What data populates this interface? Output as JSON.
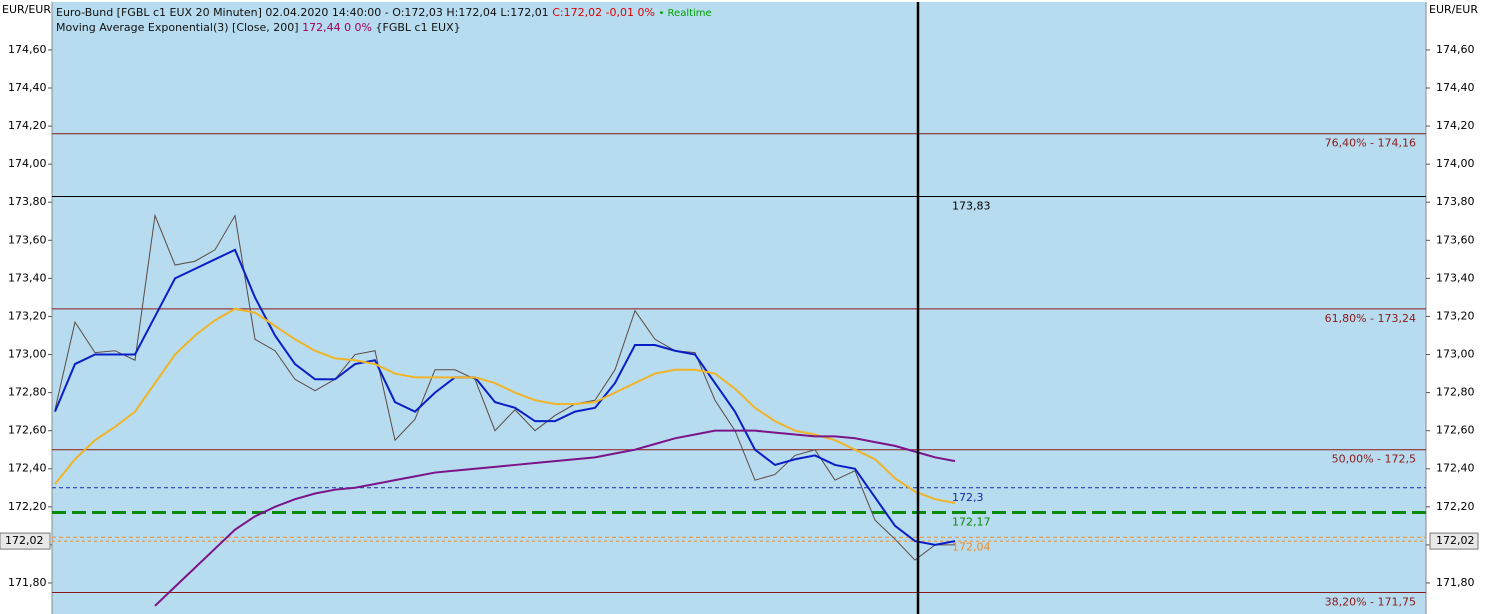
{
  "header": {
    "line1": "Euro-Bund [FGBL c1 EUX 20 Minuten] 02.04.2020 14:40:00 - O:172,03 H:172,04 L:172,01",
    "line1_close": "C:172,02 -0,01 0%",
    "line1_status": "• Realtime",
    "line2": "Moving Average Exponential(3) [Close, 200]",
    "line2_value": "172,44 0 0%",
    "line2_source": "{FGBL c1 EUX}"
  },
  "axis_unit_left": "EUR/EUR",
  "axis_unit_right": "EUR/EUR",
  "chart_data": {
    "type": "line",
    "x": [
      0,
      1,
      2,
      3,
      4,
      5,
      6,
      7,
      8,
      9,
      10,
      11,
      12,
      13,
      14,
      15,
      16,
      17,
      18,
      19,
      20,
      21,
      22,
      23,
      24,
      25,
      26,
      27,
      28,
      29,
      30,
      31,
      32,
      33,
      34,
      35,
      36,
      37,
      38,
      39,
      40,
      41,
      42,
      43,
      44,
      45
    ],
    "xlim": [
      -0.15,
      68.55
    ],
    "ylim": [
      171.637,
      174.836
    ],
    "yticks": [
      {
        "value": 171.8,
        "label": "171,80"
      },
      {
        "value": 172.0,
        "label": "172,00"
      },
      {
        "value": 172.2,
        "label": "172,20"
      },
      {
        "value": 172.4,
        "label": "172,40"
      },
      {
        "value": 172.6,
        "label": "172,60"
      },
      {
        "value": 172.8,
        "label": "172,80"
      },
      {
        "value": 173.0,
        "label": "173,00"
      },
      {
        "value": 173.2,
        "label": "173,20"
      },
      {
        "value": 173.4,
        "label": "173,40"
      },
      {
        "value": 173.6,
        "label": "173,60"
      },
      {
        "value": 173.8,
        "label": "173,80"
      },
      {
        "value": 174.0,
        "label": "174,00"
      },
      {
        "value": 174.2,
        "label": "174,20"
      },
      {
        "value": 174.4,
        "label": "174,40"
      },
      {
        "value": 174.6,
        "label": "174,60"
      }
    ],
    "series": [
      {
        "color": "#5a4a42",
        "values": [
          172.71,
          173.17,
          173.01,
          173.02,
          172.97,
          173.73,
          173.47,
          173.49,
          173.55,
          173.73,
          173.08,
          173.02,
          172.87,
          172.81,
          172.87,
          173.0,
          173.02,
          172.55,
          172.66,
          172.92,
          172.92,
          172.87,
          172.6,
          172.71,
          172.6,
          172.68,
          172.74,
          172.76,
          172.92,
          173.23,
          173.08,
          173.02,
          173.01,
          172.76,
          172.6,
          172.34,
          172.37,
          172.47,
          172.5,
          172.34,
          172.39,
          172.13,
          172.03,
          171.92,
          172.0,
          172.0
        ]
      },
      {
        "color": "#0a1ec8",
        "values": [
          172.7,
          172.95,
          173.0,
          173.0,
          173.0,
          173.2,
          173.4,
          173.45,
          173.5,
          173.55,
          173.3,
          173.1,
          172.95,
          172.87,
          172.87,
          172.95,
          172.97,
          172.75,
          172.7,
          172.8,
          172.88,
          172.88,
          172.75,
          172.72,
          172.65,
          172.65,
          172.7,
          172.72,
          172.85,
          173.05,
          173.05,
          173.02,
          173.0,
          172.85,
          172.7,
          172.5,
          172.42,
          172.45,
          172.47,
          172.42,
          172.4,
          172.25,
          172.1,
          172.02,
          172.0,
          172.02
        ]
      },
      {
        "color": "#f0b428",
        "values": [
          172.32,
          172.45,
          172.55,
          172.62,
          172.7,
          172.85,
          173.0,
          173.1,
          173.18,
          173.24,
          173.22,
          173.15,
          173.08,
          173.02,
          172.98,
          172.97,
          172.95,
          172.9,
          172.88,
          172.88,
          172.88,
          172.88,
          172.85,
          172.8,
          172.76,
          172.74,
          172.74,
          172.75,
          172.8,
          172.85,
          172.9,
          172.92,
          172.92,
          172.9,
          172.82,
          172.72,
          172.65,
          172.6,
          172.58,
          172.55,
          172.5,
          172.45,
          172.35,
          172.28,
          172.24,
          172.22
        ]
      },
      {
        "color": "#7a1488",
        "values": [
          null,
          null,
          null,
          null,
          null,
          171.68,
          171.78,
          171.88,
          171.98,
          172.08,
          172.15,
          172.2,
          172.24,
          172.27,
          172.29,
          172.3,
          172.32,
          172.34,
          172.36,
          172.38,
          172.39,
          172.4,
          172.41,
          172.42,
          172.43,
          172.44,
          172.45,
          172.46,
          172.48,
          172.5,
          172.53,
          172.56,
          172.58,
          172.6,
          172.6,
          172.6,
          172.59,
          172.58,
          172.57,
          172.57,
          172.56,
          172.54,
          172.52,
          172.49,
          172.46,
          172.44
        ]
      }
    ],
    "levels": [
      {
        "value": 174.16,
        "label": "76,40% - 174,16",
        "color": "#8b1a1a",
        "style": "solid",
        "corner": "right"
      },
      {
        "value": 173.83,
        "label": "173,83",
        "color": "#000000",
        "style": "solid",
        "corner": "cursor"
      },
      {
        "value": 173.24,
        "label": "61,80% - 173,24",
        "color": "#8b1a1a",
        "style": "solid",
        "corner": "right"
      },
      {
        "value": 172.5,
        "label": "50,00% - 172,5",
        "color": "#8b1a1a",
        "style": "solid",
        "corner": "right"
      },
      {
        "value": 172.3,
        "label": "172,3",
        "color": "#1a2aa8",
        "style": "dashed",
        "corner": "cursor"
      },
      {
        "value": 172.17,
        "label": "172,17",
        "color": "#0a8a0a",
        "style": "thick-dashed",
        "corner": "cursor"
      },
      {
        "value": 172.04,
        "label": "172,04",
        "color": "#f08c28",
        "style": "dashed",
        "corner": "cursor"
      },
      {
        "value": 171.75,
        "label": "38,20% - 171,75",
        "color": "#8b1a1a",
        "style": "solid",
        "corner": "right"
      }
    ],
    "current_price": {
      "value": 172.02,
      "label": "172,02"
    },
    "cursor_x": 43.15
  }
}
